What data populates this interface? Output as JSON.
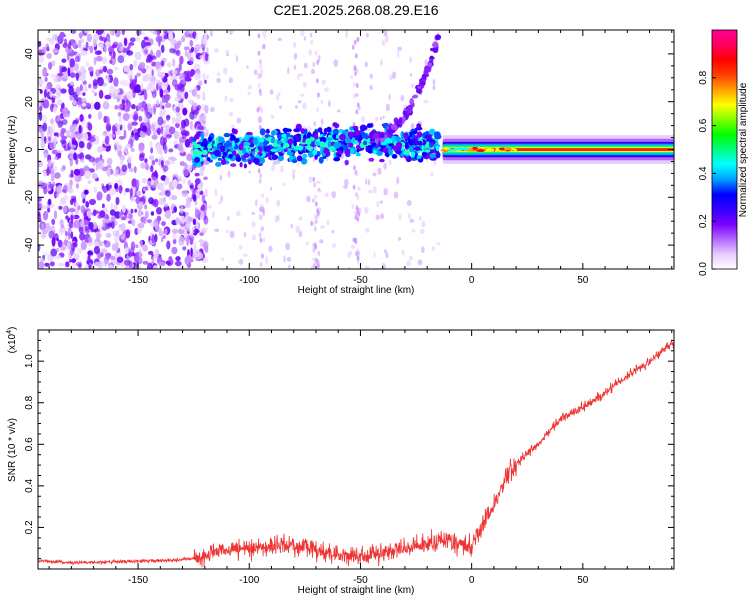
{
  "title": "C2E1.2025.268.08.29.E16",
  "chart_data": [
    {
      "type": "heatmap",
      "xlabel": "Height of straight line (km)",
      "ylabel": "Frequency (Hz)",
      "xlim": [
        -195,
        91
      ],
      "ylim": [
        -50,
        50
      ],
      "xticks": [
        -150,
        -100,
        -50,
        0,
        50
      ],
      "yticks": [
        -40,
        -20,
        0,
        20,
        40
      ],
      "colorbar": {
        "label": "Normalized spectral amplitude",
        "range": [
          0.0,
          1.0
        ],
        "ticks": [
          "0.0",
          "0.2",
          "0.4",
          "0.6",
          "0.8"
        ],
        "colors": [
          "#ffffff",
          "#e6ccff",
          "#b266ff",
          "#7a00ff",
          "#3300ff",
          "#0000ff",
          "#00a0ff",
          "#00ffff",
          "#00ff80",
          "#00ff00",
          "#80ff00",
          "#ffff00",
          "#ffa000",
          "#ff4000",
          "#ff0000",
          "#ff0060",
          "#ff0090"
        ]
      },
      "features": {
        "noise_region_x": [
          -195,
          -125
        ],
        "chirp_region_x": [
          -125,
          -15
        ],
        "tone_region_x": [
          -15,
          91
        ],
        "tone_frequency": 0
      }
    },
    {
      "type": "line",
      "xlabel": "Height of straight line (km)",
      "ylabel": "SNR (10 * v/v)",
      "exponent_label": "(x10",
      "exponent_power": "4",
      "xlim": [
        -195,
        91
      ],
      "ylim": [
        0,
        1.15
      ],
      "xticks": [
        -150,
        -100,
        -50,
        0,
        50
      ],
      "yticks": [
        "0.2",
        "0.4",
        "0.6",
        "0.8",
        "1.0"
      ],
      "series_color": "#ee3333",
      "x": [
        -195,
        -180,
        -160,
        -140,
        -125,
        -115,
        -100,
        -90,
        -80,
        -70,
        -60,
        -50,
        -40,
        -30,
        -20,
        -10,
        0,
        5,
        10,
        15,
        20,
        25,
        30,
        40,
        50,
        55,
        60,
        70,
        80,
        88,
        91
      ],
      "values": [
        0.04,
        0.03,
        0.035,
        0.04,
        0.05,
        0.08,
        0.1,
        0.11,
        0.12,
        0.09,
        0.07,
        0.06,
        0.08,
        0.1,
        0.12,
        0.14,
        0.1,
        0.22,
        0.3,
        0.43,
        0.5,
        0.56,
        0.6,
        0.72,
        0.78,
        0.81,
        0.85,
        0.93,
        1.0,
        1.07,
        1.08
      ]
    }
  ]
}
